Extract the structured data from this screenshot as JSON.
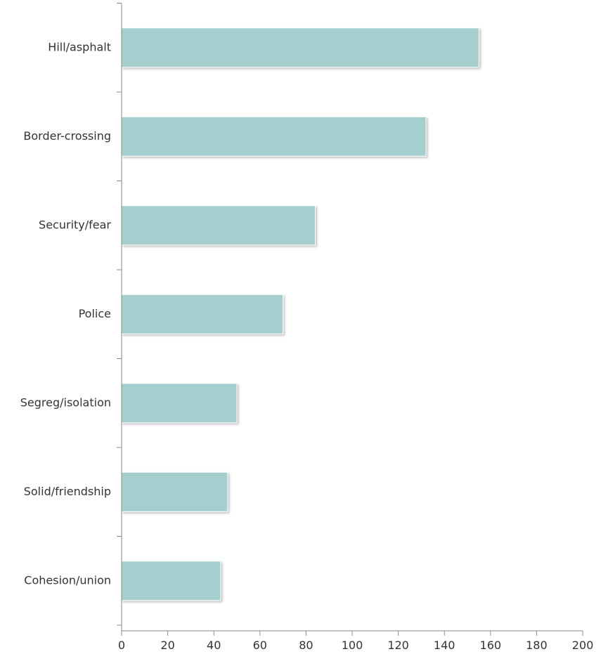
{
  "chart_data": {
    "type": "bar",
    "orientation": "horizontal",
    "title": "",
    "xlabel": "",
    "ylabel": "",
    "categories": [
      "Hill/asphalt",
      "Border-crossing",
      "Security/fear",
      "Police",
      "Segreg/isolation",
      "Solid/friendship",
      "Cohesion/union"
    ],
    "values": [
      155,
      132,
      84,
      70,
      50,
      46,
      43
    ],
    "xlim": [
      0,
      200
    ],
    "xticks": [
      0,
      20,
      40,
      60,
      80,
      100,
      120,
      140,
      160,
      180,
      200
    ],
    "grid": false,
    "legend": "none",
    "bar_color": "#a5cfcf",
    "bar_edge_color": "#ffffff"
  }
}
